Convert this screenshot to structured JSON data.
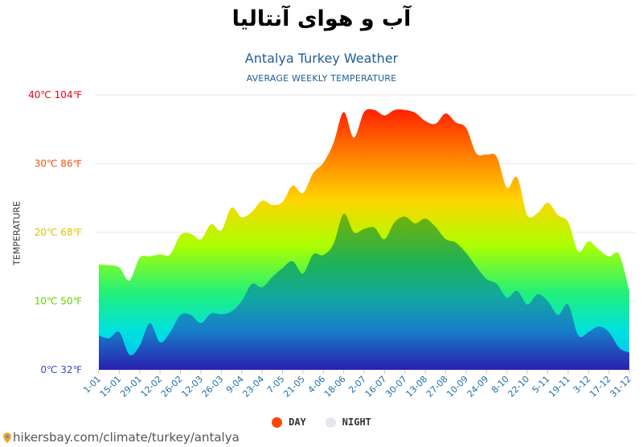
{
  "page": {
    "title": "آب و هوای آنتالیا",
    "footer_text": "hikersbay.com/climate/turkey/antalya"
  },
  "chart_data": {
    "type": "area",
    "title": "Antalya Turkey Weather",
    "subtitle": "AVERAGE WEEKLY TEMPERATURE",
    "ylabel": "TEMPERATURE",
    "ylim": [
      0,
      40
    ],
    "grid": true,
    "legend_position": "bottom",
    "y_ticks": [
      {
        "value": 0,
        "label": "0℃ 32℉",
        "color": "#3949c8"
      },
      {
        "value": 10,
        "label": "10℃ 50℉",
        "color": "#5fd400"
      },
      {
        "value": 20,
        "label": "20℃ 68℉",
        "color": "#e0c000"
      },
      {
        "value": 30,
        "label": "30℃ 86℉",
        "color": "#f05010"
      },
      {
        "value": 40,
        "label": "40℃ 104℉",
        "color": "#e8001c"
      }
    ],
    "x_ticks": [
      "1-01",
      "15-01",
      "29-01",
      "12-02",
      "26-02",
      "12-03",
      "26-03",
      "9-04",
      "23-04",
      "7-05",
      "21-05",
      "4-06",
      "18-06",
      "2-07",
      "16-07",
      "30-07",
      "13-08",
      "27-08",
      "10-09",
      "24-09",
      "8-10",
      "22-10",
      "5-11",
      "19-11",
      "3-12",
      "17-12",
      "31-12"
    ],
    "series": [
      {
        "name": "DAY",
        "color": "#ff4500",
        "values": [
          15.3,
          15.2,
          14.9,
          13.0,
          16.3,
          16.5,
          16.8,
          16.8,
          19.6,
          19.8,
          19.0,
          21.2,
          20.3,
          23.6,
          22.2,
          23.0,
          24.6,
          24.0,
          24.4,
          26.8,
          25.7,
          28.6,
          30.1,
          33.0,
          37.5,
          33.8,
          37.5,
          37.8,
          37.0,
          37.8,
          37.8,
          37.4,
          36.2,
          35.8,
          37.3,
          36.0,
          35.2,
          31.5,
          31.3,
          31.0,
          26.5,
          28.0,
          22.5,
          22.8,
          24.3,
          22.5,
          21.5,
          17.2,
          18.7,
          17.5,
          16.5,
          16.8,
          11.5
        ]
      },
      {
        "name": "NIGHT",
        "color": "#e4e8ee",
        "values": [
          5.0,
          4.6,
          5.5,
          2.2,
          3.5,
          6.8,
          4.0,
          5.5,
          8.0,
          8.0,
          6.8,
          8.2,
          8.1,
          8.5,
          10.0,
          12.5,
          12.0,
          13.5,
          14.8,
          15.8,
          14.0,
          16.8,
          16.7,
          18.3,
          22.7,
          20.0,
          20.5,
          20.7,
          19.0,
          21.5,
          22.3,
          21.3,
          22.0,
          20.8,
          19.0,
          18.5,
          17.0,
          15.0,
          13.2,
          12.5,
          10.5,
          11.5,
          9.5,
          11.0,
          10.0,
          8.0,
          9.5,
          5.0,
          5.5,
          6.3,
          5.5,
          3.2,
          2.5
        ]
      }
    ]
  }
}
